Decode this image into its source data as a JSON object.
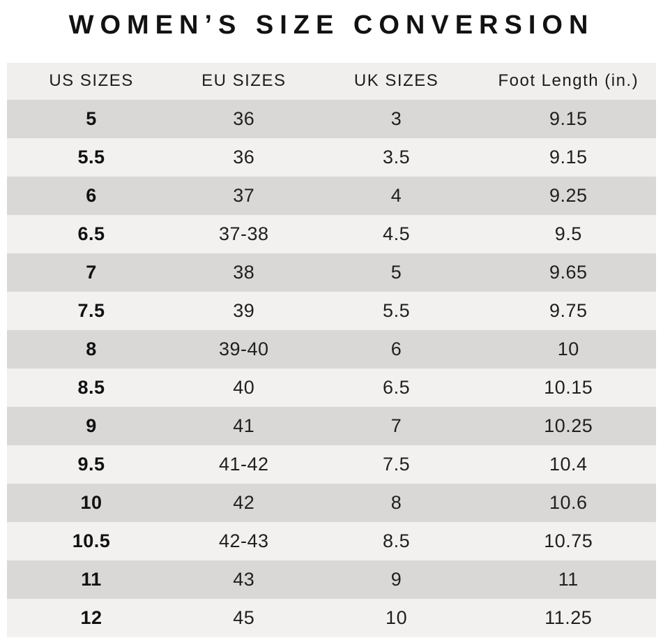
{
  "title": "WOMEN’S SIZE CONVERSION",
  "colors": {
    "background": "#ffffff",
    "header_row": "#f0efee",
    "row_dark": "#d9d8d7",
    "row_light": "#f2f1f0",
    "title_text": "#121212",
    "body_text": "#1f1f1f"
  },
  "chart_data": {
    "type": "table",
    "title": "WOMEN’S SIZE CONVERSION",
    "columns": [
      "US SIZES",
      "EU SIZES",
      "UK SIZES",
      "Foot Length (in.)"
    ],
    "rows": [
      [
        "5",
        "36",
        "3",
        "9.15"
      ],
      [
        "5.5",
        "36",
        "3.5",
        "9.15"
      ],
      [
        "6",
        "37",
        "4",
        "9.25"
      ],
      [
        "6.5",
        "37-38",
        "4.5",
        "9.5"
      ],
      [
        "7",
        "38",
        "5",
        "9.65"
      ],
      [
        "7.5",
        "39",
        "5.5",
        "9.75"
      ],
      [
        "8",
        "39-40",
        "6",
        "10"
      ],
      [
        "8.5",
        "40",
        "6.5",
        "10.15"
      ],
      [
        "9",
        "41",
        "7",
        "10.25"
      ],
      [
        "9.5",
        "41-42",
        "7.5",
        "10.4"
      ],
      [
        "10",
        "42",
        "8",
        "10.6"
      ],
      [
        "10.5",
        "42-43",
        "8.5",
        "10.75"
      ],
      [
        "11",
        "43",
        "9",
        "11"
      ],
      [
        "12",
        "45",
        "10",
        "11.25"
      ]
    ],
    "layout": {
      "striped": true,
      "stripe_start": "dark",
      "grid": false,
      "column_align": [
        "center",
        "center",
        "center",
        "center"
      ]
    }
  }
}
